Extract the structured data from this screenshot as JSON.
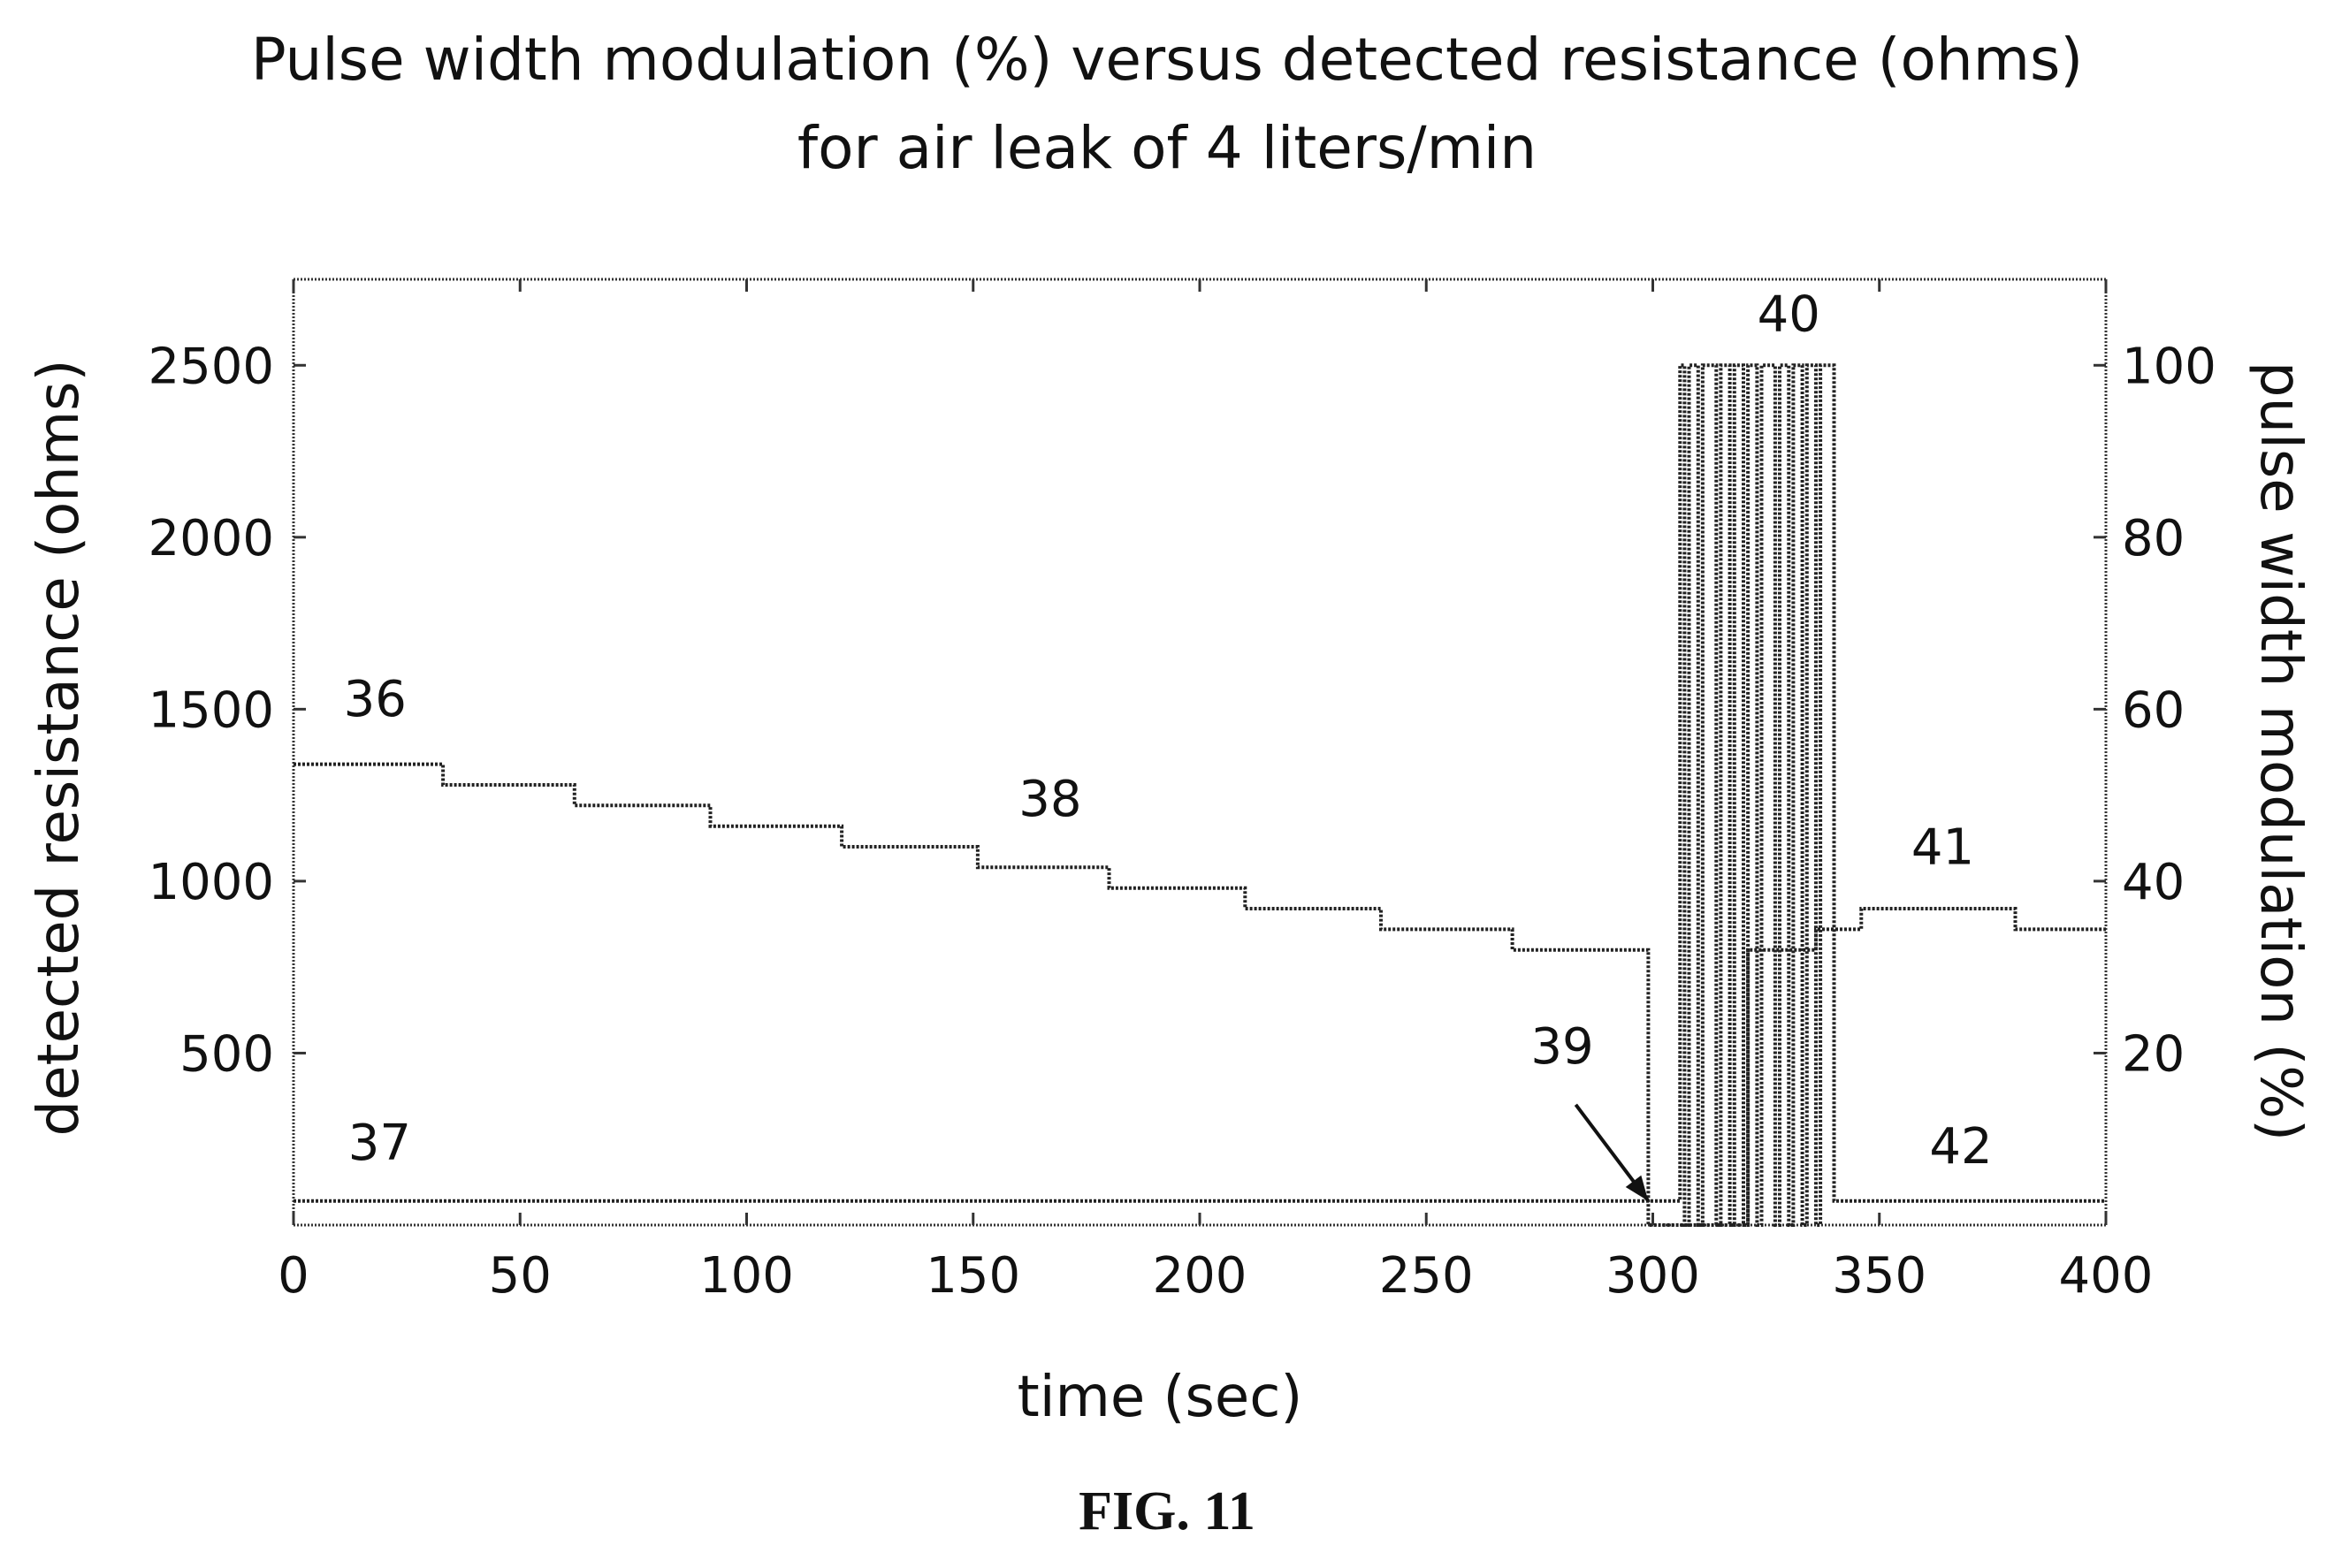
{
  "figure_label": "FIG. 11",
  "chart_data": {
    "type": "line",
    "title_lines": [
      "Pulse width modulation (%) versus detected resistance (ohms)",
      "for air leak of 4 liters/min"
    ],
    "xlabel": "time (sec)",
    "ylabel_left": "detected resistance (ohms)",
    "ylabel_right": "pulse width modulation (%)",
    "xlim": [
      0,
      400
    ],
    "ylim_left": [
      0,
      2750
    ],
    "ylim_right": [
      0,
      110
    ],
    "x_ticks": [
      "0",
      "50",
      "100",
      "150",
      "200",
      "250",
      "300",
      "350",
      "400"
    ],
    "y_left_ticks": [
      "500",
      "1000",
      "1500",
      "2000",
      "2500"
    ],
    "y_right_ticks": [
      "20",
      "40",
      "60",
      "80",
      "100"
    ],
    "grid": false,
    "series": [
      {
        "axis": "left",
        "x": [
          0,
          33,
          33,
          62,
          62,
          92,
          92,
          121,
          121,
          151,
          151,
          180,
          180,
          210,
          210,
          240,
          240,
          269,
          269,
          299,
          299,
          321,
          321,
          336,
          336,
          346,
          346,
          380,
          380,
          400
        ],
        "y": [
          1340,
          1340,
          1280,
          1280,
          1220,
          1220,
          1160,
          1160,
          1100,
          1100,
          1040,
          1040,
          980,
          980,
          920,
          920,
          860,
          860,
          800,
          800,
          0,
          0,
          800,
          800,
          860,
          860,
          920,
          920,
          860,
          860
        ]
      },
      {
        "axis": "right",
        "x": [
          0,
          299,
          299,
          306,
          306,
          307,
          307,
          308,
          308,
          310,
          310,
          311,
          311,
          314,
          314,
          315,
          315,
          317,
          317,
          318,
          318,
          320,
          320,
          321,
          321,
          323,
          323,
          324,
          324,
          327,
          327,
          328,
          328,
          330,
          330,
          331,
          331,
          333,
          333,
          334,
          334,
          336,
          336,
          337,
          337,
          340,
          340,
          341,
          341,
          400
        ],
        "y": [
          2.8,
          2.8,
          2.8,
          2.8,
          100,
          100,
          0,
          0,
          100,
          100,
          0,
          0,
          100,
          100,
          0,
          0,
          100,
          100,
          0,
          0,
          100,
          100,
          0,
          0,
          100,
          100,
          0,
          0,
          100,
          100,
          0,
          0,
          100,
          100,
          0,
          0,
          100,
          100,
          0,
          0,
          100,
          100,
          0,
          0,
          100,
          100,
          2.8,
          2.8,
          2.8,
          2.8
        ]
      }
    ],
    "annotations": [
      {
        "text": "36",
        "x": 18,
        "y": 1480,
        "axis": "left"
      },
      {
        "text": "38",
        "x": 167,
        "y": 1190,
        "axis": "left"
      },
      {
        "text": "40",
        "x": 330,
        "y": 2600,
        "axis": "left"
      },
      {
        "text": "41",
        "x": 364,
        "y": 1050,
        "axis": "left"
      },
      {
        "text": "37",
        "x": 19,
        "y": 190,
        "axis": "left"
      },
      {
        "text": "39",
        "x": 280,
        "y": 470,
        "axis": "left"
      },
      {
        "text": "42",
        "x": 368,
        "y": 180,
        "axis": "left"
      }
    ],
    "arrow": {
      "from": [
        283,
        350
      ],
      "to": [
        299,
        70
      ],
      "axis": "left"
    }
  }
}
